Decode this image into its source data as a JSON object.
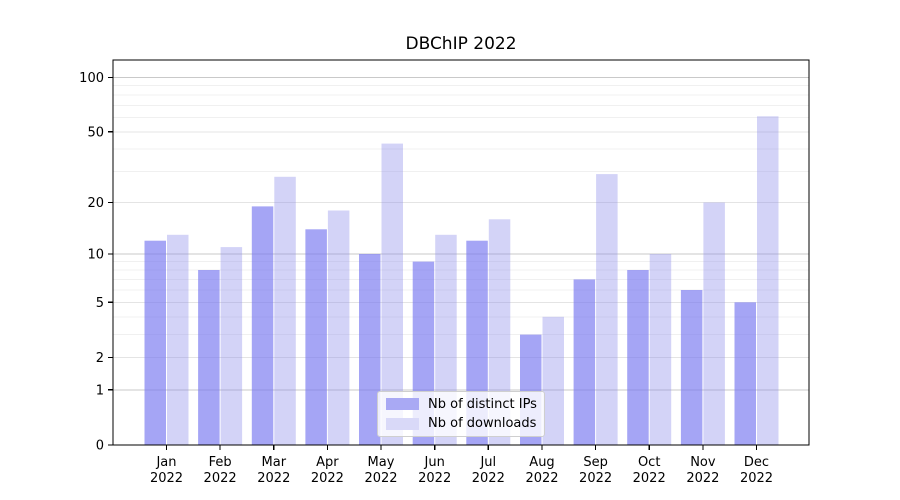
{
  "chart_data": {
    "type": "bar",
    "title": "DBChIP 2022",
    "categories": [
      "Jan 2022",
      "Feb 2022",
      "Mar 2022",
      "Apr 2022",
      "May 2022",
      "Jun 2022",
      "Jul 2022",
      "Aug 2022",
      "Sep 2022",
      "Oct 2022",
      "Nov 2022",
      "Dec 2022"
    ],
    "x_tick_line1": [
      "Jan",
      "Feb",
      "Mar",
      "Apr",
      "May",
      "Jun",
      "Jul",
      "Aug",
      "Sep",
      "Oct",
      "Nov",
      "Dec"
    ],
    "x_tick_line2": [
      "2022",
      "2022",
      "2022",
      "2022",
      "2022",
      "2022",
      "2022",
      "2022",
      "2022",
      "2022",
      "2022",
      "2022"
    ],
    "series": [
      {
        "name": "Nb of distinct IPs",
        "key": "distinct-ips",
        "color": "#a9a9f4",
        "fill": "rgba(122,122,240,0.68)",
        "values": [
          12,
          8,
          19,
          14,
          10,
          9,
          12,
          3,
          7,
          8,
          6,
          5
        ]
      },
      {
        "name": "Nb of downloads",
        "key": "downloads",
        "color": "#d9d9f8",
        "fill": "rgba(140,140,235,0.38)",
        "values": [
          13,
          11,
          28,
          18,
          43,
          13,
          16,
          4,
          29,
          10,
          20,
          61
        ]
      }
    ],
    "xlabel": "",
    "ylabel": "",
    "yticks": [
      0,
      1,
      2,
      5,
      10,
      20,
      50,
      100
    ],
    "ylim": [
      0,
      100
    ],
    "yscale": "log10(1+x)",
    "grid": true,
    "legend_position": "lower center",
    "grid_colors": {
      "minor": "#f0f0f0",
      "major": "#e4e4e4",
      "power_of_ten": "#c9c9c9"
    }
  }
}
